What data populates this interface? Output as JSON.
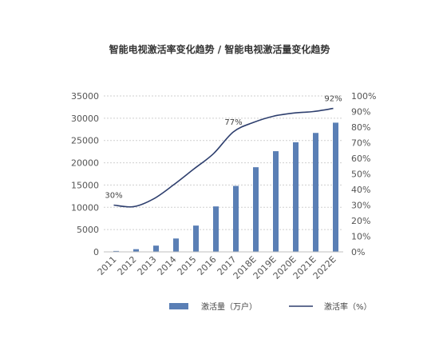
{
  "chart_data": {
    "type": "bar",
    "title": "智能电视激活率变化趋势 / 智能电视激活量变化趋势",
    "categories": [
      "2011",
      "2012",
      "2013",
      "2014",
      "2015",
      "2016",
      "2017",
      "2018E",
      "2019E",
      "2020E",
      "2021E",
      "2022E"
    ],
    "series": [
      {
        "name": "激活量（万户）",
        "type": "bar",
        "axis": "left",
        "values": [
          200,
          600,
          1400,
          3000,
          5900,
          10200,
          14800,
          19000,
          22600,
          24600,
          26700,
          29000
        ],
        "color": "#5a7fb5"
      },
      {
        "name": "激活率（%）",
        "type": "line",
        "axis": "right",
        "values": [
          30,
          29,
          34,
          43,
          53,
          63,
          77,
          83,
          87,
          89,
          90,
          92
        ],
        "color": "#2e3f6e"
      }
    ],
    "y_left": {
      "ylim": [
        0,
        35000
      ],
      "ticks": [
        "0",
        "5000",
        "10000",
        "15000",
        "20000",
        "25000",
        "30000",
        "35000"
      ]
    },
    "y_right": {
      "ylim": [
        0,
        100
      ],
      "ticks": [
        "0%",
        "10%",
        "20%",
        "30%",
        "40%",
        "50%",
        "60%",
        "70%",
        "80%",
        "90%",
        "100%"
      ]
    },
    "annotations": [
      {
        "index": 0,
        "text": "30%"
      },
      {
        "index": 6,
        "text": "77%"
      },
      {
        "index": 11,
        "text": "92%"
      }
    ],
    "grid": true,
    "legend": "bottom"
  }
}
